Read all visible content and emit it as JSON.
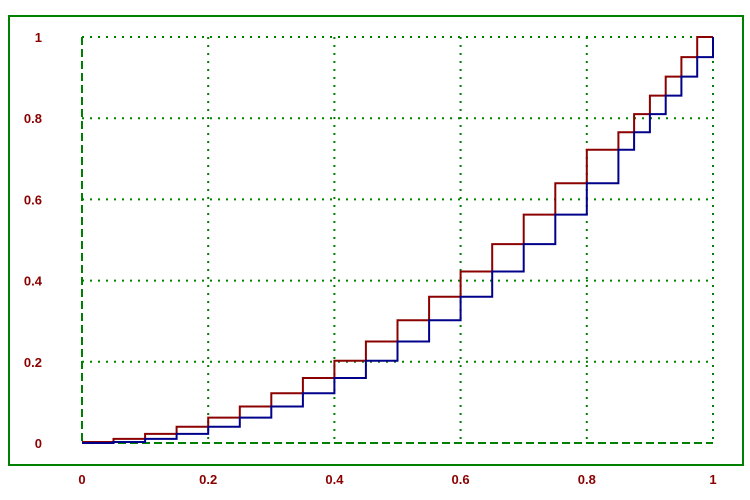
{
  "chart_data": {
    "type": "line",
    "title": "",
    "xlabel": "",
    "ylabel": "",
    "xlim": [
      0,
      1
    ],
    "ylim": [
      0,
      1
    ],
    "grid": true,
    "x_ticks": [
      "0",
      "0.2",
      "0.4",
      "0.6",
      "0.8",
      "1"
    ],
    "y_ticks": [
      "0",
      "0.2",
      "0.4",
      "0.6",
      "0.8",
      "1"
    ],
    "series": [
      {
        "color": "#8b0000",
        "step": "post",
        "x": [
          0,
          0.05,
          0.1,
          0.15,
          0.2,
          0.25,
          0.3,
          0.35,
          0.4,
          0.45,
          0.5,
          0.55,
          0.6,
          0.65,
          0.7,
          0.75,
          0.8,
          0.85,
          0.875,
          0.9,
          0.925,
          0.95,
          0.975,
          1.0
        ],
        "y": [
          0.0025,
          0.01,
          0.0225,
          0.04,
          0.0625,
          0.09,
          0.1225,
          0.16,
          0.2025,
          0.25,
          0.3025,
          0.36,
          0.4225,
          0.49,
          0.5625,
          0.64,
          0.7225,
          0.7656,
          0.81,
          0.8556,
          0.9025,
          0.9506,
          1.0,
          1.0
        ]
      },
      {
        "color": "#00008b",
        "step": "post",
        "x": [
          0,
          0.05,
          0.1,
          0.15,
          0.2,
          0.25,
          0.3,
          0.35,
          0.4,
          0.45,
          0.5,
          0.55,
          0.6,
          0.65,
          0.7,
          0.75,
          0.8,
          0.85,
          0.875,
          0.9,
          0.925,
          0.95,
          0.975,
          1.0
        ],
        "y": [
          0.0,
          0.0025,
          0.01,
          0.0225,
          0.04,
          0.0625,
          0.09,
          0.1225,
          0.16,
          0.2025,
          0.25,
          0.3025,
          0.36,
          0.4225,
          0.49,
          0.5625,
          0.64,
          0.7225,
          0.7656,
          0.81,
          0.8556,
          0.9025,
          0.9506,
          1.0
        ]
      }
    ],
    "colors": {
      "frame": "#008000",
      "grid": "#008000",
      "tick_labels": "#8b0000"
    }
  }
}
